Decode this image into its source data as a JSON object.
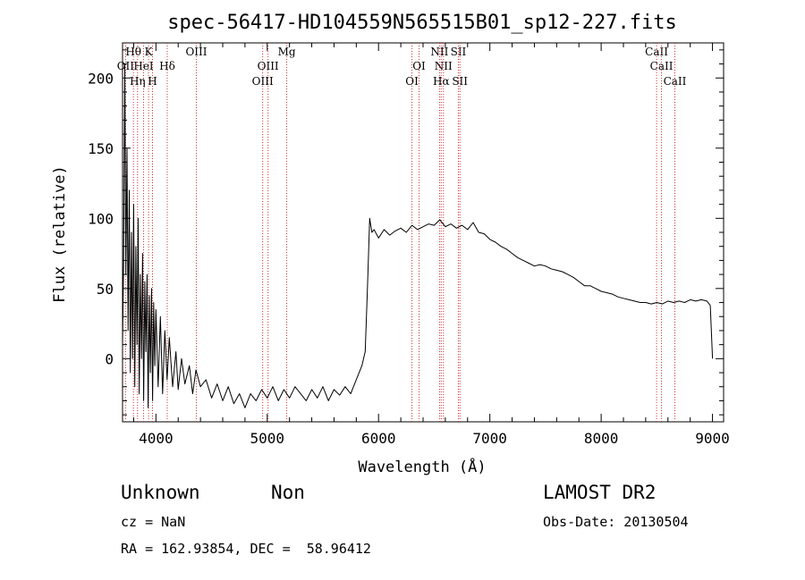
{
  "chart_data": {
    "type": "line",
    "title": "spec-56417-HD104559N565515B01_sp12-227.fits",
    "xlabel": "Wavelength (Å)",
    "ylabel": "Flux (relative)",
    "xlim": [
      3700,
      9100
    ],
    "ylim": [
      -45,
      225
    ],
    "x_ticks": [
      4000,
      5000,
      6000,
      7000,
      8000,
      9000
    ],
    "y_ticks": [
      0,
      50,
      100,
      150,
      200
    ],
    "grid": false,
    "series": [
      {
        "color": "#000000",
        "points": [
          [
            3700,
            10
          ],
          [
            3710,
            70
          ],
          [
            3720,
            210
          ],
          [
            3730,
            60
          ],
          [
            3740,
            150
          ],
          [
            3750,
            20
          ],
          [
            3760,
            120
          ],
          [
            3770,
            -10
          ],
          [
            3780,
            90
          ],
          [
            3790,
            0
          ],
          [
            3800,
            110
          ],
          [
            3810,
            -20
          ],
          [
            3820,
            80
          ],
          [
            3830,
            10
          ],
          [
            3840,
            100
          ],
          [
            3850,
            -25
          ],
          [
            3860,
            60
          ],
          [
            3870,
            0
          ],
          [
            3880,
            75
          ],
          [
            3890,
            -30
          ],
          [
            3900,
            55
          ],
          [
            3910,
            5
          ],
          [
            3920,
            60
          ],
          [
            3930,
            -35
          ],
          [
            3940,
            45
          ],
          [
            3950,
            -10
          ],
          [
            3960,
            50
          ],
          [
            3970,
            -30
          ],
          [
            3980,
            40
          ],
          [
            3990,
            -5
          ],
          [
            4000,
            35
          ],
          [
            4020,
            -20
          ],
          [
            4040,
            30
          ],
          [
            4060,
            -25
          ],
          [
            4080,
            20
          ],
          [
            4100,
            -15
          ],
          [
            4120,
            15
          ],
          [
            4150,
            -20
          ],
          [
            4180,
            5
          ],
          [
            4200,
            -22
          ],
          [
            4230,
            0
          ],
          [
            4260,
            -18
          ],
          [
            4300,
            -5
          ],
          [
            4330,
            -25
          ],
          [
            4360,
            -8
          ],
          [
            4400,
            -20
          ],
          [
            4450,
            -15
          ],
          [
            4500,
            -28
          ],
          [
            4550,
            -18
          ],
          [
            4600,
            -30
          ],
          [
            4650,
            -20
          ],
          [
            4700,
            -32
          ],
          [
            4750,
            -25
          ],
          [
            4800,
            -35
          ],
          [
            4850,
            -25
          ],
          [
            4900,
            -30
          ],
          [
            4950,
            -22
          ],
          [
            5000,
            -28
          ],
          [
            5050,
            -20
          ],
          [
            5100,
            -30
          ],
          [
            5150,
            -22
          ],
          [
            5200,
            -28
          ],
          [
            5250,
            -20
          ],
          [
            5300,
            -25
          ],
          [
            5350,
            -30
          ],
          [
            5400,
            -22
          ],
          [
            5450,
            -28
          ],
          [
            5500,
            -20
          ],
          [
            5550,
            -30
          ],
          [
            5600,
            -22
          ],
          [
            5650,
            -26
          ],
          [
            5700,
            -20
          ],
          [
            5750,
            -25
          ],
          [
            5800,
            -15
          ],
          [
            5850,
            -5
          ],
          [
            5880,
            5
          ],
          [
            5900,
            50
          ],
          [
            5920,
            100
          ],
          [
            5940,
            90
          ],
          [
            5960,
            92
          ],
          [
            6000,
            86
          ],
          [
            6050,
            92
          ],
          [
            6100,
            88
          ],
          [
            6150,
            91
          ],
          [
            6200,
            93
          ],
          [
            6250,
            90
          ],
          [
            6300,
            95
          ],
          [
            6350,
            92
          ],
          [
            6400,
            94
          ],
          [
            6450,
            96
          ],
          [
            6500,
            95
          ],
          [
            6550,
            99
          ],
          [
            6600,
            94
          ],
          [
            6650,
            96
          ],
          [
            6700,
            93
          ],
          [
            6750,
            95
          ],
          [
            6800,
            92
          ],
          [
            6850,
            97
          ],
          [
            6900,
            90
          ],
          [
            6950,
            89
          ],
          [
            7000,
            85
          ],
          [
            7050,
            83
          ],
          [
            7100,
            80
          ],
          [
            7150,
            78
          ],
          [
            7200,
            75
          ],
          [
            7250,
            72
          ],
          [
            7300,
            70
          ],
          [
            7350,
            68
          ],
          [
            7400,
            66
          ],
          [
            7450,
            67
          ],
          [
            7500,
            66
          ],
          [
            7550,
            64
          ],
          [
            7600,
            63
          ],
          [
            7650,
            62
          ],
          [
            7700,
            60
          ],
          [
            7750,
            58
          ],
          [
            7800,
            55
          ],
          [
            7850,
            52
          ],
          [
            7900,
            52
          ],
          [
            7950,
            50
          ],
          [
            8000,
            48
          ],
          [
            8050,
            47
          ],
          [
            8100,
            46
          ],
          [
            8150,
            44
          ],
          [
            8200,
            43
          ],
          [
            8250,
            42
          ],
          [
            8300,
            41
          ],
          [
            8350,
            40
          ],
          [
            8400,
            40
          ],
          [
            8450,
            39
          ],
          [
            8500,
            40
          ],
          [
            8550,
            39
          ],
          [
            8600,
            41
          ],
          [
            8650,
            40
          ],
          [
            8700,
            41
          ],
          [
            8750,
            40
          ],
          [
            8800,
            42
          ],
          [
            8850,
            41
          ],
          [
            8900,
            42
          ],
          [
            8950,
            41
          ],
          [
            8980,
            38
          ],
          [
            8990,
            20
          ],
          [
            9000,
            0
          ]
        ]
      }
    ],
    "line_markers": [
      {
        "label": "OII",
        "x": 3727,
        "row": 1
      },
      {
        "label": "Hθ",
        "x": 3798,
        "row": 0
      },
      {
        "label": "HeI",
        "x": 3889,
        "row": 1
      },
      {
        "label": "Hη",
        "x": 3835,
        "row": 2
      },
      {
        "label": "K",
        "x": 3934,
        "row": 0
      },
      {
        "label": "H",
        "x": 3969,
        "row": 2
      },
      {
        "label": "Hδ",
        "x": 4102,
        "row": 1
      },
      {
        "label": "OIII",
        "x": 4363,
        "row": 0
      },
      {
        "label": "OIII",
        "x": 4959,
        "row": 2
      },
      {
        "label": "OIII",
        "x": 5007,
        "row": 1
      },
      {
        "label": "Mg",
        "x": 5175,
        "row": 0
      },
      {
        "label": "OI",
        "x": 6300,
        "row": 2
      },
      {
        "label": "OI",
        "x": 6364,
        "row": 1
      },
      {
        "label": "NII",
        "x": 6548,
        "row": 0
      },
      {
        "label": "NII",
        "x": 6583,
        "row": 1
      },
      {
        "label": "Hα",
        "x": 6563,
        "row": 2
      },
      {
        "label": "SII",
        "x": 6717,
        "row": 0
      },
      {
        "label": "SII",
        "x": 6731,
        "row": 2
      },
      {
        "label": "CaII",
        "x": 8498,
        "row": 0
      },
      {
        "label": "CaII",
        "x": 8542,
        "row": 1
      },
      {
        "label": "CaII",
        "x": 8662,
        "row": 2
      }
    ],
    "marker_color": "#cc3333"
  },
  "footer": {
    "class_label": "Unknown",
    "subclass_label": "Non",
    "cz_text": "cz = NaN",
    "coords_text": "RA = 162.93854, DEC =  58.96412",
    "survey_label": "LAMOST DR2",
    "obs_date_text": "Obs-Date: 20130504"
  }
}
